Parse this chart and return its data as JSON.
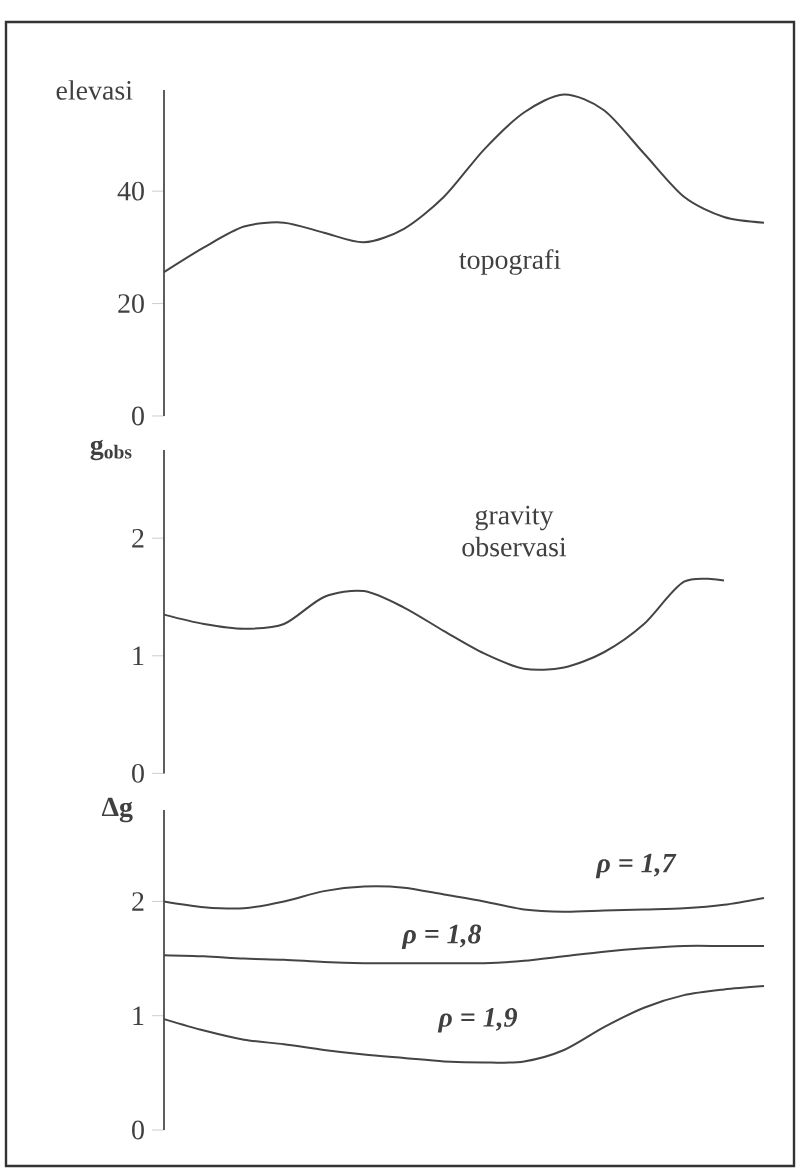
{
  "chart_data": [
    {
      "type": "line",
      "ylabel": "elevasi",
      "categories": [
        null,
        null,
        null,
        null,
        null,
        null,
        null,
        null,
        null,
        null,
        null,
        null,
        null,
        null,
        null,
        null
      ],
      "values": [
        25.6,
        30,
        33.7,
        34.4,
        32.6,
        30.9,
        33.3,
        39,
        47.4,
        54,
        57.2,
        54.4,
        46.7,
        39,
        35.4,
        34.4
      ],
      "color": "#444444",
      "ylim": [
        0,
        58
      ],
      "yticks": [
        0,
        20,
        40
      ],
      "tick_labels": "y",
      "annotations": [
        "topografi"
      ]
    },
    {
      "type": "line",
      "ylabel": "g$_{obs}$",
      "categories": [
        null,
        null,
        null,
        null,
        null,
        null,
        null,
        null,
        null,
        null,
        null,
        null,
        null,
        null,
        null,
        null
      ],
      "values": [
        1.35,
        1.27,
        1.23,
        1.27,
        1.5,
        1.55,
        1.41,
        1.21,
        1.02,
        0.89,
        0.9,
        1.03,
        1.27,
        1.63,
        1.64,
        null
      ],
      "color": "#444444",
      "ylim": [
        0,
        2.75
      ],
      "yticks": [
        0,
        1,
        2
      ],
      "tick_labels": "y",
      "annotations": [
        "gravity observasi"
      ]
    },
    {
      "type": "line",
      "ylabel": "Δg",
      "categories": [
        null,
        null,
        null,
        null,
        null,
        null,
        null,
        null,
        null,
        null,
        null,
        null,
        null,
        null,
        null,
        null
      ],
      "ylim": [
        0,
        2.8
      ],
      "yticks": [
        0,
        1,
        2
      ],
      "tick_labels": "y",
      "series": [
        {
          "name": "ρ = 1,7",
          "color": "#444444",
          "values": [
            2.0,
            1.95,
            1.94,
            2.0,
            2.09,
            2.13,
            2.12,
            2.06,
            2.0,
            1.93,
            1.91,
            1.92,
            1.93,
            1.94,
            1.97,
            2.03
          ]
        },
        {
          "name": "ρ = 1,8",
          "color": "#444444",
          "values": [
            1.53,
            1.52,
            1.5,
            1.49,
            1.47,
            1.46,
            1.46,
            1.46,
            1.46,
            1.48,
            1.52,
            1.56,
            1.59,
            1.61,
            1.61,
            1.61
          ]
        },
        {
          "name": "ρ = 1,9",
          "color": "#444444",
          "values": [
            0.97,
            0.87,
            0.79,
            0.75,
            0.7,
            0.66,
            0.63,
            0.6,
            0.59,
            0.6,
            0.7,
            0.9,
            1.07,
            1.18,
            1.23,
            1.26
          ]
        }
      ]
    }
  ]
}
